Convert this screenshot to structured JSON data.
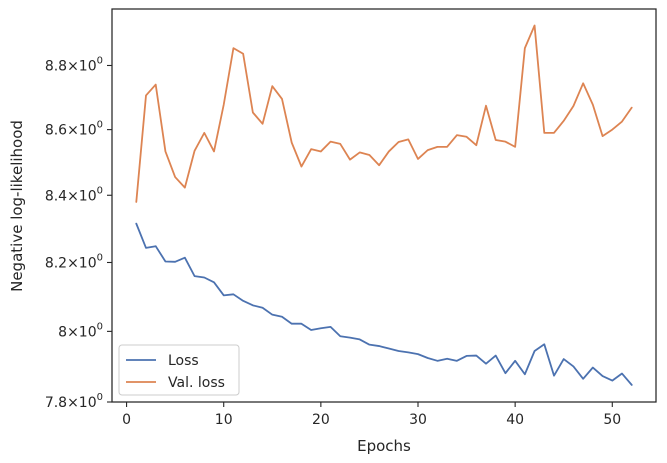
{
  "chart_data": {
    "type": "line",
    "title": "",
    "xlabel": "Epochs",
    "ylabel": "Negative log-likelihood",
    "yscale": "log",
    "xlim": [
      -1.5,
      54.5
    ],
    "ylim": [
      7.8,
      8.98
    ],
    "x_ticks": [
      0,
      10,
      20,
      30,
      40,
      50
    ],
    "x_tick_labels": [
      "0",
      "10",
      "20",
      "30",
      "40",
      "50"
    ],
    "y_ticks": [
      7.8,
      8.0,
      8.2,
      8.4,
      8.6,
      8.8
    ],
    "y_tick_labels": [
      {
        "mantissa": "7.8",
        "base": "10",
        "exp": "0"
      },
      {
        "mantissa": "8",
        "base": "10",
        "exp": "0"
      },
      {
        "mantissa": "8.2",
        "base": "10",
        "exp": "0"
      },
      {
        "mantissa": "8.4",
        "base": "10",
        "exp": "0"
      },
      {
        "mantissa": "8.6",
        "base": "10",
        "exp": "0"
      },
      {
        "mantissa": "8.8",
        "base": "10",
        "exp": "0"
      }
    ],
    "times_sign": "×",
    "legend_position": "lower-left",
    "grid": false,
    "x": [
      1,
      2,
      3,
      4,
      5,
      6,
      7,
      8,
      9,
      10,
      11,
      12,
      13,
      14,
      15,
      16,
      17,
      18,
      19,
      20,
      21,
      22,
      23,
      24,
      25,
      26,
      27,
      28,
      29,
      30,
      31,
      32,
      33,
      34,
      35,
      36,
      37,
      38,
      39,
      40,
      41,
      42,
      43,
      44,
      45,
      46,
      47,
      48,
      49,
      50,
      51,
      52
    ],
    "series": [
      {
        "name": "Loss",
        "color": "#4c72b0",
        "values": [
          8.315,
          8.243,
          8.248,
          8.203,
          8.202,
          8.214,
          8.16,
          8.156,
          8.142,
          8.104,
          8.107,
          8.088,
          8.075,
          8.068,
          8.048,
          8.042,
          8.022,
          8.022,
          8.004,
          8.009,
          8.013,
          7.986,
          7.982,
          7.977,
          7.962,
          7.958,
          7.951,
          7.944,
          7.94,
          7.935,
          7.924,
          7.916,
          7.922,
          7.916,
          7.93,
          7.931,
          7.908,
          7.931,
          7.881,
          7.916,
          7.878,
          7.944,
          7.963,
          7.874,
          7.921,
          7.9,
          7.865,
          7.897,
          7.873,
          7.86,
          7.88,
          7.848
        ]
      },
      {
        "name": "Val. loss",
        "color": "#dd8452",
        "values": [
          8.38,
          8.706,
          8.74,
          8.533,
          8.455,
          8.423,
          8.535,
          8.59,
          8.533,
          8.677,
          8.855,
          8.837,
          8.653,
          8.618,
          8.735,
          8.695,
          8.56,
          8.487,
          8.54,
          8.533,
          8.563,
          8.556,
          8.508,
          8.53,
          8.522,
          8.491,
          8.533,
          8.562,
          8.57,
          8.51,
          8.537,
          8.547,
          8.547,
          8.583,
          8.578,
          8.552,
          8.674,
          8.568,
          8.563,
          8.547,
          8.855,
          8.927,
          8.59,
          8.59,
          8.627,
          8.673,
          8.744,
          8.677,
          8.58,
          8.6,
          8.625,
          8.668
        ]
      }
    ]
  }
}
